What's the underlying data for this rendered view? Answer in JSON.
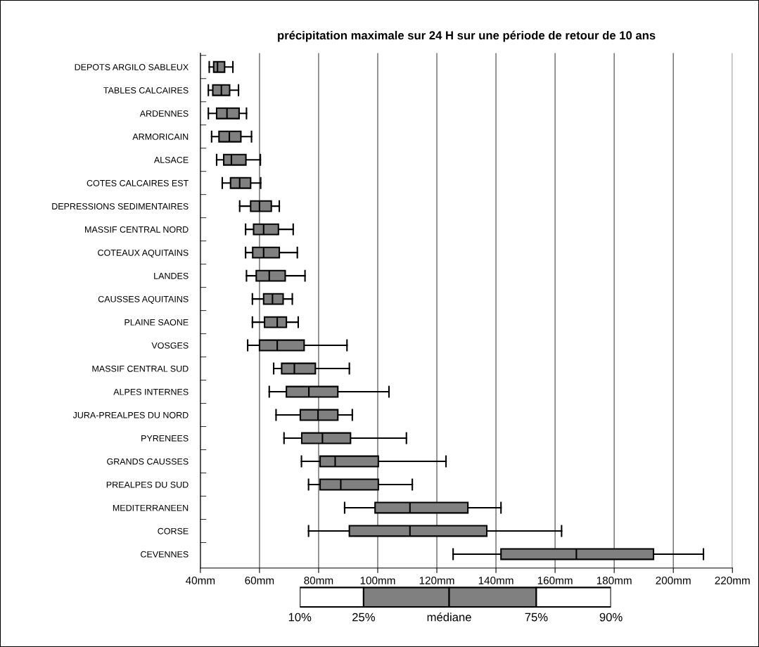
{
  "chart_data": {
    "type": "box",
    "orientation": "horizontal",
    "title": "précipitation maximale sur 24 H sur une période de retour de 10 ans",
    "categories": [
      "DEPOTS ARGILO SABLEUX",
      "TABLES CALCAIRES",
      "ARDENNES",
      "ARMORICAIN",
      "ALSACE",
      "COTES CALCAIRES EST",
      "DEPRESSIONS SEDIMENTAIRES",
      "MASSIF CENTRAL NORD",
      "COTEAUX AQUITAINS",
      "LANDES",
      "CAUSSES AQUITAINS",
      "PLAINE SAONE",
      "VOSGES",
      "MASSIF CENTRAL SUD",
      "ALPES INTERNES",
      "JURA-PREALPES DU NORD",
      "PYRENEES",
      "GRANDS CAUSSES",
      "PREALPES DU SUD",
      "MEDITERRANEEN",
      "CORSE",
      "CEVENNES"
    ],
    "color": "#808080",
    "boxes": [
      {
        "low": 43.0,
        "q1": 44.5,
        "median": 45.8,
        "q3": 48.2,
        "high": 51.0
      },
      {
        "low": 42.7,
        "q1": 44.2,
        "median": 47.1,
        "q3": 49.9,
        "high": 52.9
      },
      {
        "low": 42.7,
        "q1": 45.5,
        "median": 49.0,
        "q3": 53.1,
        "high": 55.6
      },
      {
        "low": 43.8,
        "q1": 46.3,
        "median": 49.8,
        "q3": 53.7,
        "high": 57.3
      },
      {
        "low": 45.5,
        "q1": 47.9,
        "median": 50.5,
        "q3": 55.4,
        "high": 60.3
      },
      {
        "low": 47.4,
        "q1": 50.2,
        "median": 53.3,
        "q3": 57.0,
        "high": 60.4
      },
      {
        "low": 53.3,
        "q1": 57.0,
        "median": 60.0,
        "q3": 64.0,
        "high": 66.7
      },
      {
        "low": 55.3,
        "q1": 58.0,
        "median": 61.4,
        "q3": 66.4,
        "high": 71.4
      },
      {
        "low": 55.3,
        "q1": 57.7,
        "median": 61.4,
        "q3": 66.7,
        "high": 72.8
      },
      {
        "low": 55.6,
        "q1": 58.9,
        "median": 63.3,
        "q3": 68.7,
        "high": 75.4
      },
      {
        "low": 57.6,
        "q1": 61.4,
        "median": 64.4,
        "q3": 68.0,
        "high": 71.1
      },
      {
        "low": 57.6,
        "q1": 61.7,
        "median": 66.0,
        "q3": 69.1,
        "high": 73.1
      },
      {
        "low": 56.0,
        "q1": 60.0,
        "median": 66.0,
        "q3": 75.1,
        "high": 89.6
      },
      {
        "low": 64.8,
        "q1": 67.5,
        "median": 71.8,
        "q3": 78.9,
        "high": 90.4
      },
      {
        "low": 63.3,
        "q1": 69.1,
        "median": 76.7,
        "q3": 86.5,
        "high": 103.8
      },
      {
        "low": 65.6,
        "q1": 73.8,
        "median": 79.8,
        "q3": 86.5,
        "high": 91.4
      },
      {
        "low": 68.3,
        "q1": 74.3,
        "median": 81.3,
        "q3": 90.8,
        "high": 109.7
      },
      {
        "low": 74.2,
        "q1": 80.5,
        "median": 85.6,
        "q3": 100.2,
        "high": 123.1
      },
      {
        "low": 76.6,
        "q1": 80.5,
        "median": 87.5,
        "q3": 100.2,
        "high": 111.7
      },
      {
        "low": 88.8,
        "q1": 99.1,
        "median": 110.9,
        "q3": 130.5,
        "high": 141.7
      },
      {
        "low": 76.6,
        "q1": 90.4,
        "median": 110.9,
        "q3": 136.9,
        "high": 162.2
      },
      {
        "low": 125.5,
        "q1": 141.7,
        "median": 167.2,
        "q3": 193.3,
        "high": 210.2
      }
    ],
    "xlim": [
      40,
      220
    ],
    "xticks": [
      {
        "value": 40,
        "label": "40mm"
      },
      {
        "value": 60,
        "label": "60mm"
      },
      {
        "value": 80,
        "label": "80mm"
      },
      {
        "value": 100,
        "label": "100mm"
      },
      {
        "value": 120,
        "label": "120mm"
      },
      {
        "value": 140,
        "label": "140mm"
      },
      {
        "value": 160,
        "label": "160mm"
      },
      {
        "value": 180,
        "label": "180mm"
      },
      {
        "value": 200,
        "label": "200mm"
      },
      {
        "value": 220,
        "label": "220mm"
      }
    ],
    "grid": "x",
    "annotations": [
      "10%",
      "25%",
      "médiane",
      "75%",
      "90%"
    ]
  }
}
